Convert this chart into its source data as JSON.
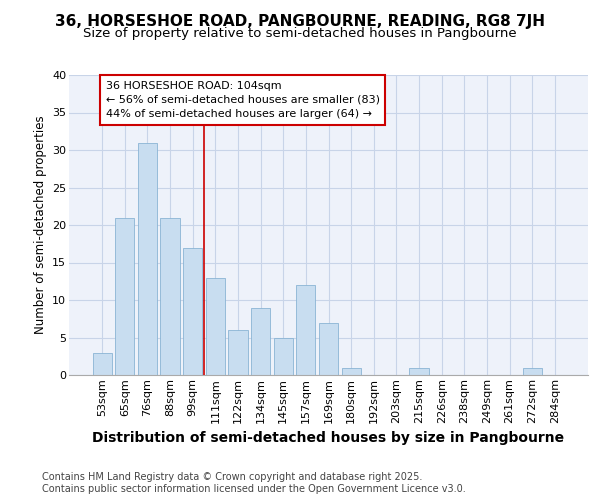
{
  "title1": "36, HORSESHOE ROAD, PANGBOURNE, READING, RG8 7JH",
  "title2": "Size of property relative to semi-detached houses in Pangbourne",
  "xlabel": "Distribution of semi-detached houses by size in Pangbourne",
  "ylabel": "Number of semi-detached properties",
  "categories": [
    "53sqm",
    "65sqm",
    "76sqm",
    "88sqm",
    "99sqm",
    "111sqm",
    "122sqm",
    "134sqm",
    "145sqm",
    "157sqm",
    "169sqm",
    "180sqm",
    "192sqm",
    "203sqm",
    "215sqm",
    "226sqm",
    "238sqm",
    "249sqm",
    "261sqm",
    "272sqm",
    "284sqm"
  ],
  "values": [
    3,
    21,
    31,
    21,
    17,
    13,
    6,
    9,
    5,
    12,
    7,
    1,
    0,
    0,
    1,
    0,
    0,
    0,
    0,
    1,
    0
  ],
  "bar_color": "#c8ddf0",
  "bar_edge_color": "#8ab4d4",
  "property_line_x": 4.5,
  "annotation_text_line1": "36 HORSESHOE ROAD: 104sqm",
  "annotation_text_line2": "← 56% of semi-detached houses are smaller (83)",
  "annotation_text_line3": "44% of semi-detached houses are larger (64) →",
  "annotation_box_color": "#ffffff",
  "annotation_box_edge": "#cc0000",
  "vline_color": "#cc0000",
  "footer_text": "Contains HM Land Registry data © Crown copyright and database right 2025.\nContains public sector information licensed under the Open Government Licence v3.0.",
  "ylim": [
    0,
    40
  ],
  "yticks": [
    0,
    5,
    10,
    15,
    20,
    25,
    30,
    35,
    40
  ],
  "background_color": "#ffffff",
  "plot_bg_color": "#eef2fa",
  "grid_color": "#c8d4e8",
  "title1_fontsize": 11,
  "title2_fontsize": 9.5,
  "xlabel_fontsize": 10,
  "ylabel_fontsize": 8.5,
  "tick_fontsize": 8,
  "annot_fontsize": 8,
  "footer_fontsize": 7
}
